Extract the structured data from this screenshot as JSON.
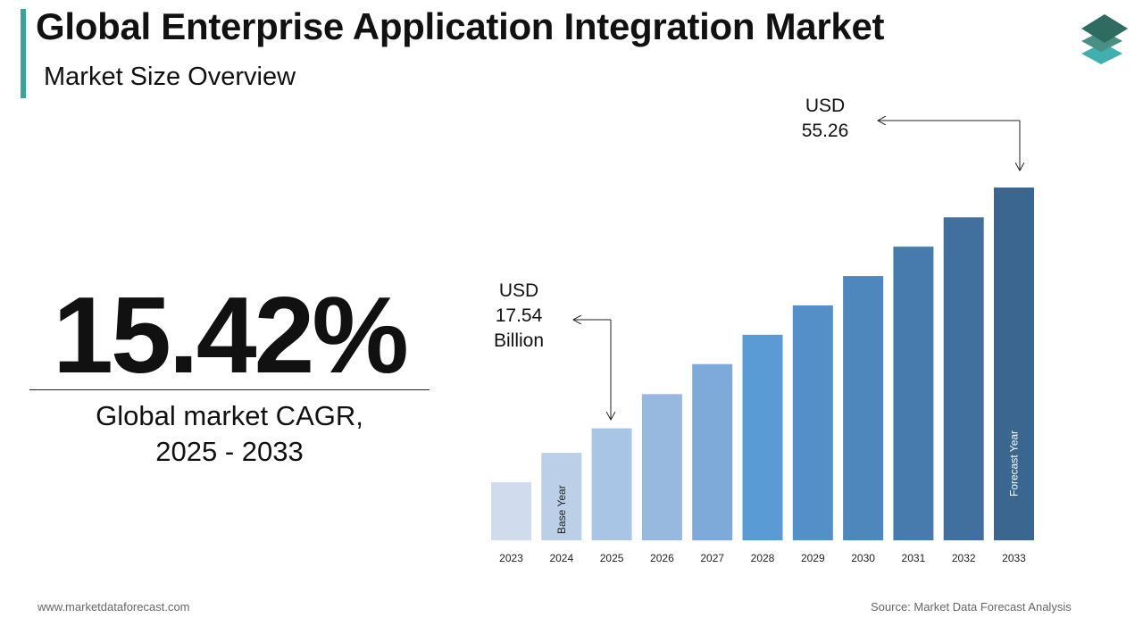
{
  "header": {
    "title": "Global Enterprise Application Integration Market",
    "subtitle": "Market Size Overview"
  },
  "kpi": {
    "value": "15.42%",
    "caption_line1": "Global market CAGR,",
    "caption_line2": "2025 - 2033"
  },
  "annotations": {
    "start": {
      "line1": "USD",
      "line2": "17.54",
      "line3": "Billion"
    },
    "end": {
      "line1": "USD",
      "line2": "55.26"
    }
  },
  "footer": {
    "website": "www.marketdataforecast.com",
    "source": "Source: Market Data Forecast Analysis"
  },
  "colors": {
    "accent": "#3aa39a",
    "logo": [
      "#2e6b61",
      "#4a8f86",
      "#3fb0ad"
    ]
  },
  "chart_data": {
    "type": "bar",
    "unit": "USD Billion",
    "categories": [
      "2023",
      "2024",
      "2025",
      "2026",
      "2027",
      "2028",
      "2029",
      "2030",
      "2031",
      "2032",
      "2033"
    ],
    "values": [
      9.1,
      13.7,
      17.54,
      22.9,
      27.6,
      32.2,
      36.8,
      41.4,
      46.0,
      50.6,
      55.26
    ],
    "bar_labels": {
      "2024": "Base Year",
      "2033": "Forecast Year"
    },
    "colors": [
      "#d0dcee",
      "#bccfe9",
      "#a9c5e5",
      "#97b9e0",
      "#7eaad9",
      "#5b9bd5",
      "#558fc7",
      "#4e87bb",
      "#477bad",
      "#41709f",
      "#3b6690"
    ],
    "ylim": [
      0,
      55.26
    ],
    "grid": false,
    "legend": "none"
  }
}
